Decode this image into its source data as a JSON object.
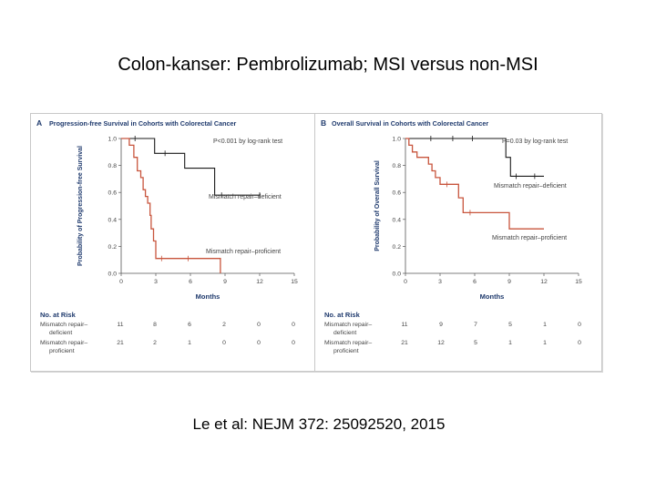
{
  "slide": {
    "title": "Colon-kanser: Pembrolizumab; MSI versus non-MSI",
    "citation": "Le et al: NEJM  372: 25092520, 2015"
  },
  "colors": {
    "deficient": "#1a1a1a",
    "proficient": "#c8553d",
    "panel_title": "#1f3a6d",
    "risk_header": "#1f3a6d",
    "axis": "#555555",
    "text": "#444444"
  },
  "chart_data": [
    {
      "type": "line",
      "panel": "A",
      "title": "Progression-free Survival in Cohorts with Colorectal Cancer",
      "xlabel": "Months",
      "ylabel": "Probability of Progression-free Survival",
      "xlim": [
        0,
        15
      ],
      "ylim": [
        0,
        1.0
      ],
      "xticks": [
        "0",
        "3",
        "6",
        "9",
        "12",
        "15"
      ],
      "yticks": [
        "0.0",
        "0.2",
        "0.4",
        "0.6",
        "0.8",
        "1.0"
      ],
      "annotation": "P<0.001 by log-rank test",
      "series": [
        {
          "name": "Mismatch repair–deficient",
          "color_key": "deficient",
          "points": [
            [
              0,
              1.0
            ],
            [
              2.9,
              1.0
            ],
            [
              2.9,
              0.89
            ],
            [
              5.5,
              0.89
            ],
            [
              5.5,
              0.78
            ],
            [
              8.1,
              0.78
            ],
            [
              8.1,
              0.58
            ],
            [
              12,
              0.58
            ]
          ],
          "censor": [
            [
              1.2,
              1.0
            ],
            [
              3.8,
              0.89
            ],
            [
              8.7,
              0.58
            ],
            [
              12,
              0.58
            ]
          ]
        },
        {
          "name": "Mismatch repair–proficient",
          "color_key": "proficient",
          "points": [
            [
              0,
              1.0
            ],
            [
              0.7,
              1.0
            ],
            [
              0.7,
              0.95
            ],
            [
              1.1,
              0.95
            ],
            [
              1.1,
              0.86
            ],
            [
              1.4,
              0.86
            ],
            [
              1.4,
              0.76
            ],
            [
              1.7,
              0.76
            ],
            [
              1.7,
              0.71
            ],
            [
              1.9,
              0.71
            ],
            [
              1.9,
              0.62
            ],
            [
              2.1,
              0.62
            ],
            [
              2.1,
              0.57
            ],
            [
              2.3,
              0.57
            ],
            [
              2.3,
              0.52
            ],
            [
              2.5,
              0.52
            ],
            [
              2.5,
              0.43
            ],
            [
              2.6,
              0.43
            ],
            [
              2.6,
              0.33
            ],
            [
              2.8,
              0.33
            ],
            [
              2.8,
              0.24
            ],
            [
              3.0,
              0.24
            ],
            [
              3.0,
              0.11
            ],
            [
              8.6,
              0.11
            ],
            [
              8.6,
              0.0
            ]
          ],
          "censor": [
            [
              3.5,
              0.11
            ],
            [
              5.8,
              0.11
            ]
          ]
        }
      ],
      "labels": {
        "deficient": "Mismatch repair–deficient",
        "proficient": "Mismatch repair–proficient"
      },
      "risk_table": {
        "header": "No. at Risk",
        "rows": [
          {
            "name_1": "Mismatch repair–",
            "name_2": "deficient",
            "values": [
              "11",
              "8",
              "6",
              "2",
              "0",
              "0"
            ]
          },
          {
            "name_1": "Mismatch repair–",
            "name_2": "proficient",
            "values": [
              "21",
              "2",
              "1",
              "0",
              "0",
              "0"
            ]
          }
        ]
      }
    },
    {
      "type": "line",
      "panel": "B",
      "title": "Overall Survival in Cohorts with Colorectal Cancer",
      "xlabel": "Months",
      "ylabel": "Probability of Overall Survival",
      "xlim": [
        0,
        15
      ],
      "ylim": [
        0,
        1.0
      ],
      "xticks": [
        "0",
        "3",
        "6",
        "9",
        "12",
        "15"
      ],
      "yticks": [
        "0.0",
        "0.2",
        "0.4",
        "0.6",
        "0.8",
        "1.0"
      ],
      "annotation": "P=0.03 by log-rank test",
      "series": [
        {
          "name": "Mismatch repair–deficient",
          "color_key": "deficient",
          "points": [
            [
              0,
              1.0
            ],
            [
              8.7,
              1.0
            ],
            [
              8.7,
              0.86
            ],
            [
              9.1,
              0.86
            ],
            [
              9.1,
              0.72
            ],
            [
              12,
              0.72
            ]
          ],
          "censor": [
            [
              2.2,
              1.0
            ],
            [
              4.1,
              1.0
            ],
            [
              5.8,
              1.0
            ],
            [
              9.6,
              0.72
            ],
            [
              11.2,
              0.72
            ]
          ]
        },
        {
          "name": "Mismatch repair–proficient",
          "color_key": "proficient",
          "points": [
            [
              0,
              1.0
            ],
            [
              0.3,
              1.0
            ],
            [
              0.3,
              0.95
            ],
            [
              0.6,
              0.95
            ],
            [
              0.6,
              0.9
            ],
            [
              1.0,
              0.9
            ],
            [
              1.0,
              0.86
            ],
            [
              2.0,
              0.86
            ],
            [
              2.0,
              0.81
            ],
            [
              2.3,
              0.81
            ],
            [
              2.3,
              0.76
            ],
            [
              2.6,
              0.76
            ],
            [
              2.6,
              0.71
            ],
            [
              3.0,
              0.71
            ],
            [
              3.0,
              0.66
            ],
            [
              4.6,
              0.66
            ],
            [
              4.6,
              0.56
            ],
            [
              5.0,
              0.56
            ],
            [
              5.0,
              0.45
            ],
            [
              9.0,
              0.45
            ],
            [
              9.0,
              0.33
            ],
            [
              12,
              0.33
            ]
          ],
          "censor": [
            [
              3.6,
              0.66
            ],
            [
              5.6,
              0.45
            ]
          ]
        }
      ],
      "labels": {
        "deficient": "Mismatch repair–deficient",
        "proficient": "Mismatch repair–proficient"
      },
      "risk_table": {
        "header": "No. at Risk",
        "rows": [
          {
            "name_1": "Mismatch repair–",
            "name_2": "deficient",
            "values": [
              "11",
              "9",
              "7",
              "5",
              "1",
              "0"
            ]
          },
          {
            "name_1": "Mismatch repair–",
            "name_2": "proficient",
            "values": [
              "21",
              "12",
              "5",
              "1",
              "1",
              "0"
            ]
          }
        ]
      }
    }
  ]
}
